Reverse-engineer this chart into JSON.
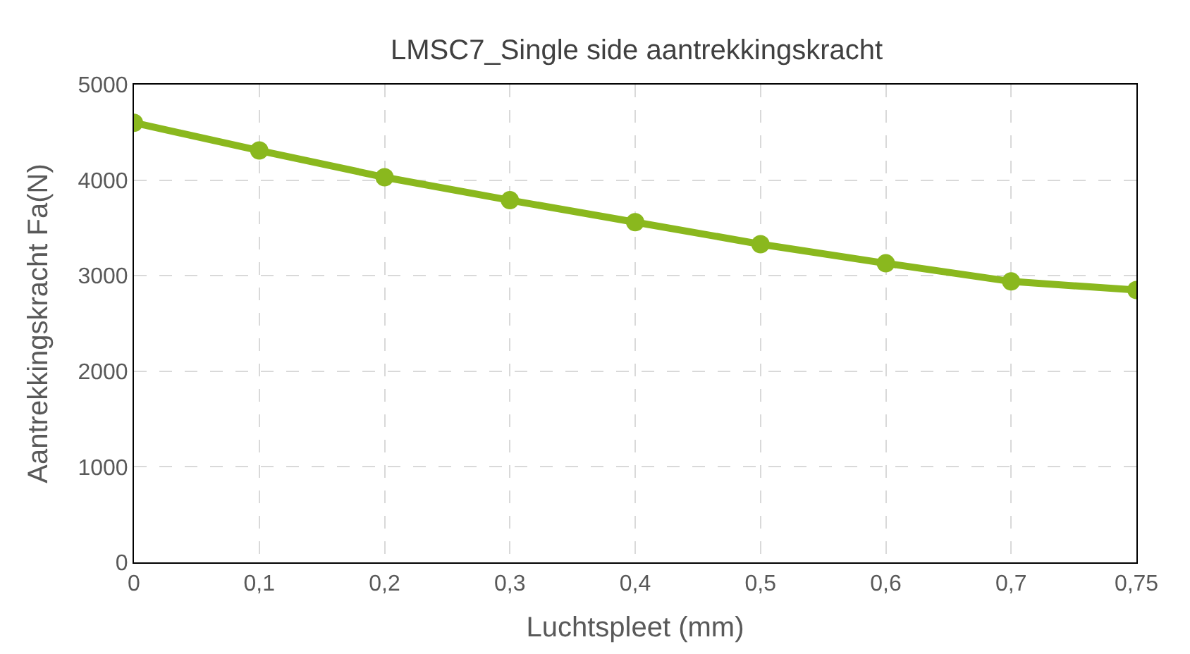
{
  "chart_data": {
    "type": "line",
    "title": "LMSC7_Single side aantrekkingskracht",
    "xlabel": "Luchtspleet (mm)",
    "ylabel": "Aantrekkingskracht Fa(N)",
    "categories": [
      "0",
      "0,1",
      "0,2",
      "0,3",
      "0,4",
      "0,5",
      "0,6",
      "0,7",
      "0,75"
    ],
    "series": [
      {
        "color": "#8ab81e",
        "values": [
          4600,
          4310,
          4030,
          3790,
          3560,
          3330,
          3130,
          2940,
          2850
        ]
      }
    ],
    "ylim": [
      0,
      5000
    ],
    "yticks": [
      0,
      1000,
      2000,
      3000,
      4000,
      5000
    ],
    "grid": true,
    "marker": "circle",
    "line_style": "solid"
  }
}
